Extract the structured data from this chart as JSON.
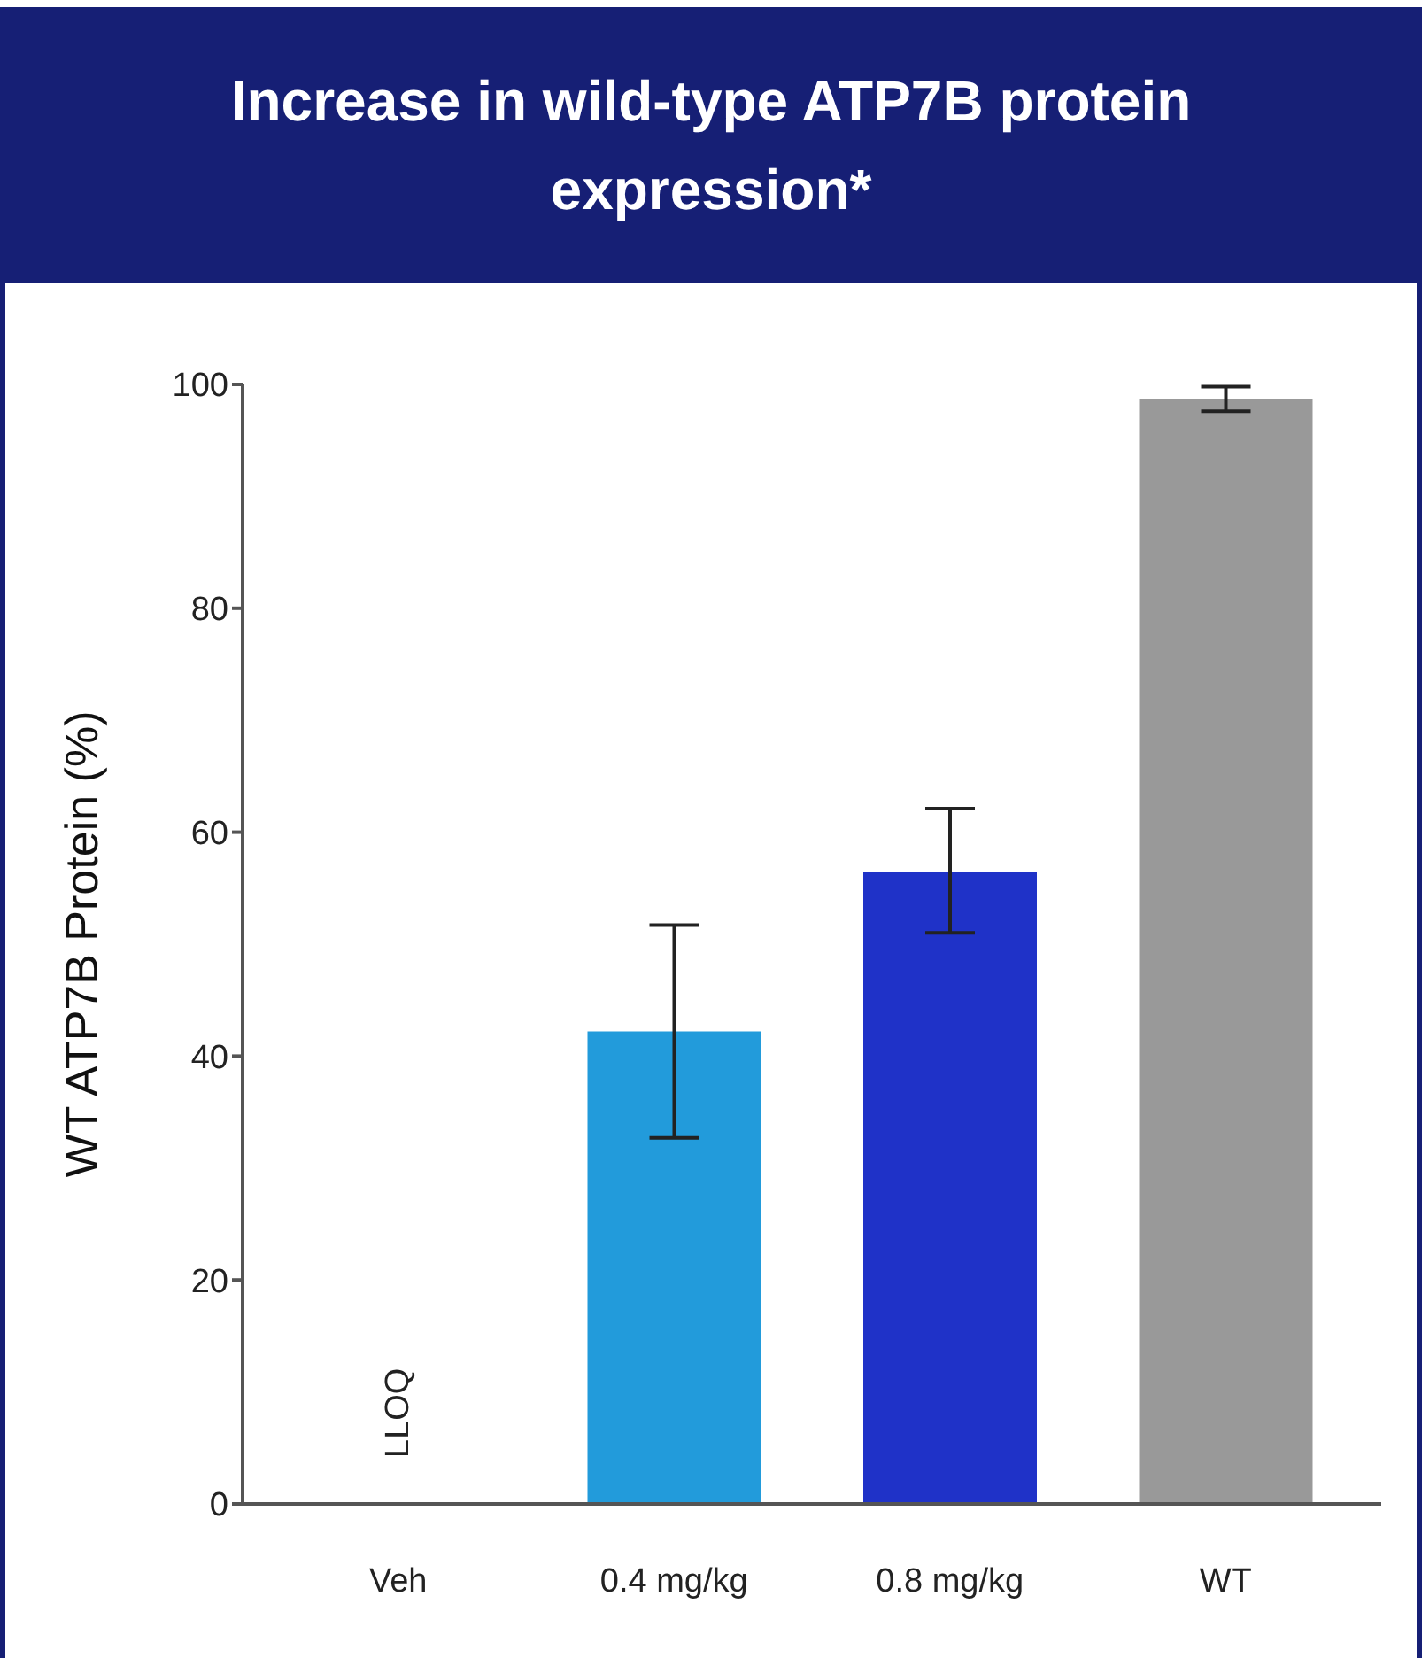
{
  "chart_data": {
    "type": "bar",
    "title": "Increase in wild-type ATP7B protein expression*",
    "ylabel": "WT ATP7B Protein (%)",
    "categories": [
      "Veh",
      "0.4 mg/kg",
      "0.8 mg/kg",
      "WT"
    ],
    "values": [
      null,
      42.2,
      56.4,
      98.7
    ],
    "colors": [
      "#229bdb",
      "#229bdb",
      "#1f32c8",
      "#999999"
    ],
    "errors": [
      null,
      [
        32.7,
        51.7
      ],
      [
        51.0,
        62.1
      ],
      [
        97.6,
        99.8
      ]
    ],
    "annotations": [
      "LLOQ"
    ],
    "ylim": [
      0,
      100
    ],
    "yticks": [
      0,
      20,
      40,
      60,
      80,
      100
    ],
    "grid": false
  }
}
